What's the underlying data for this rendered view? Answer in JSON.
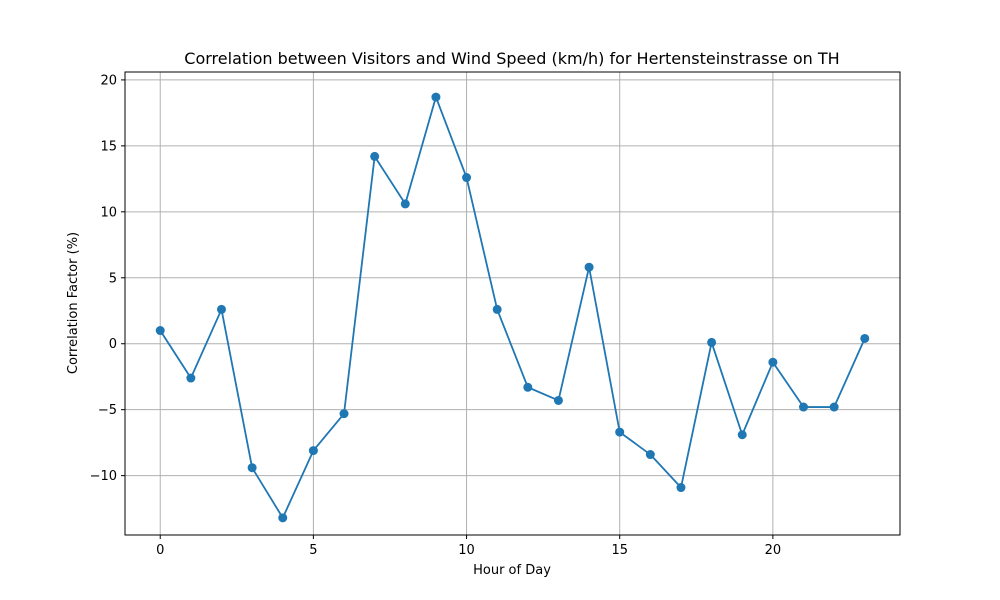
{
  "chart_data": {
    "type": "line",
    "title": "Correlation between Visitors and Wind Speed (km/h) for Hertensteinstrasse on TH",
    "xlabel": "Hour of Day",
    "ylabel": "Correlation Factor (%)",
    "xlim": [
      -1.15,
      24.15
    ],
    "ylim": [
      -14.5,
      20.6
    ],
    "xticks": [
      0,
      5,
      10,
      15,
      20
    ],
    "yticks": [
      -10,
      -5,
      0,
      5,
      10,
      15,
      20
    ],
    "xtick_labels": [
      "0",
      "5",
      "10",
      "15",
      "20"
    ],
    "ytick_labels": [
      "−10",
      "−5",
      "0",
      "5",
      "10",
      "15",
      "20"
    ],
    "grid": true,
    "color": "#1f77b4",
    "x": [
      0,
      1,
      2,
      3,
      4,
      5,
      6,
      7,
      8,
      9,
      10,
      11,
      12,
      13,
      14,
      15,
      16,
      17,
      18,
      19,
      20,
      21,
      22,
      23
    ],
    "y": [
      1.0,
      -2.6,
      2.6,
      -9.4,
      -13.2,
      -8.1,
      -5.3,
      14.2,
      10.6,
      18.7,
      12.6,
      2.6,
      -3.3,
      -4.3,
      5.8,
      -6.7,
      -8.4,
      -10.9,
      0.1,
      -6.9,
      -1.4,
      -4.8,
      -4.8,
      0.4
    ]
  }
}
